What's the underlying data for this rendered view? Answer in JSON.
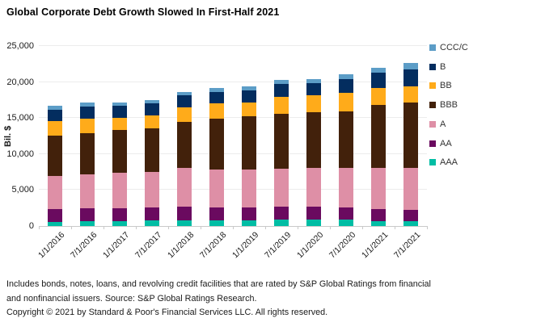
{
  "title": "Global Corporate Debt Growth Slowed In First-Half 2021",
  "y_axis": {
    "label": "Bil. $",
    "ticks": [
      "0",
      "5,000",
      "10,000",
      "15,000",
      "20,000",
      "25,000"
    ]
  },
  "legend": [
    {
      "label": "CCC/C",
      "color": "#5C9DC7"
    },
    {
      "label": "B",
      "color": "#032D5F"
    },
    {
      "label": "BB",
      "color": "#FFAB1A"
    },
    {
      "label": "BBB",
      "color": "#42210B"
    },
    {
      "label": "A",
      "color": "#DE8FA6"
    },
    {
      "label": "AA",
      "color": "#6A0A5F"
    },
    {
      "label": "AAA",
      "color": "#00BDA4"
    }
  ],
  "chart_data": {
    "type": "bar",
    "stacked": true,
    "title": "Global Corporate Debt Growth Slowed In First-Half 2021",
    "xlabel": "",
    "ylabel": "Bil. $",
    "ylim": [
      0,
      25000
    ],
    "grid": true,
    "legend_position": "right",
    "categories": [
      "1/1/2016",
      "7/1/2016",
      "1/1/2017",
      "7/1/2017",
      "1/1/2018",
      "7/1/2018",
      "1/1/2019",
      "7/1/2019",
      "1/1/2020",
      "7/1/2020",
      "1/1/2021",
      "7/1/2021"
    ],
    "series": [
      {
        "name": "AAA",
        "color": "#00BDA4",
        "values": [
          600,
          650,
          650,
          750,
          750,
          800,
          800,
          900,
          950,
          900,
          700,
          700
        ]
      },
      {
        "name": "AA",
        "color": "#6A0A5F",
        "values": [
          1750,
          1850,
          1800,
          1850,
          1950,
          1800,
          1800,
          1800,
          1750,
          1700,
          1650,
          1600
        ]
      },
      {
        "name": "A",
        "color": "#DE8FA6",
        "values": [
          4650,
          4700,
          4950,
          4900,
          5350,
          5250,
          5250,
          5250,
          5400,
          5500,
          5750,
          5800
        ]
      },
      {
        "name": "BBB",
        "color": "#42210B",
        "values": [
          5600,
          5700,
          5900,
          6100,
          6450,
          7050,
          7400,
          7600,
          7700,
          7800,
          8700,
          9050
        ]
      },
      {
        "name": "BB",
        "color": "#FFAB1A",
        "values": [
          1950,
          2050,
          1750,
          1750,
          2000,
          2150,
          1900,
          2400,
          2400,
          2550,
          2350,
          2300
        ]
      },
      {
        "name": "B",
        "color": "#032D5F",
        "values": [
          1650,
          1600,
          1700,
          1650,
          1700,
          1600,
          1700,
          1800,
          1700,
          2000,
          2150,
          2350
        ]
      },
      {
        "name": "CCC/C",
        "color": "#5C9DC7",
        "values": [
          500,
          650,
          450,
          550,
          450,
          550,
          500,
          550,
          500,
          600,
          650,
          850
        ]
      }
    ]
  },
  "footer": {
    "note_line1": "Includes bonds, notes, loans, and revolving credit facilities that are rated by S&P Global Ratings from financial",
    "note_line2": "and nonfinancial issuers. Source: S&P Global Ratings Research.",
    "copyright": "Copyright © 2021 by Standard & Poor's Financial Services LLC. All rights reserved."
  }
}
